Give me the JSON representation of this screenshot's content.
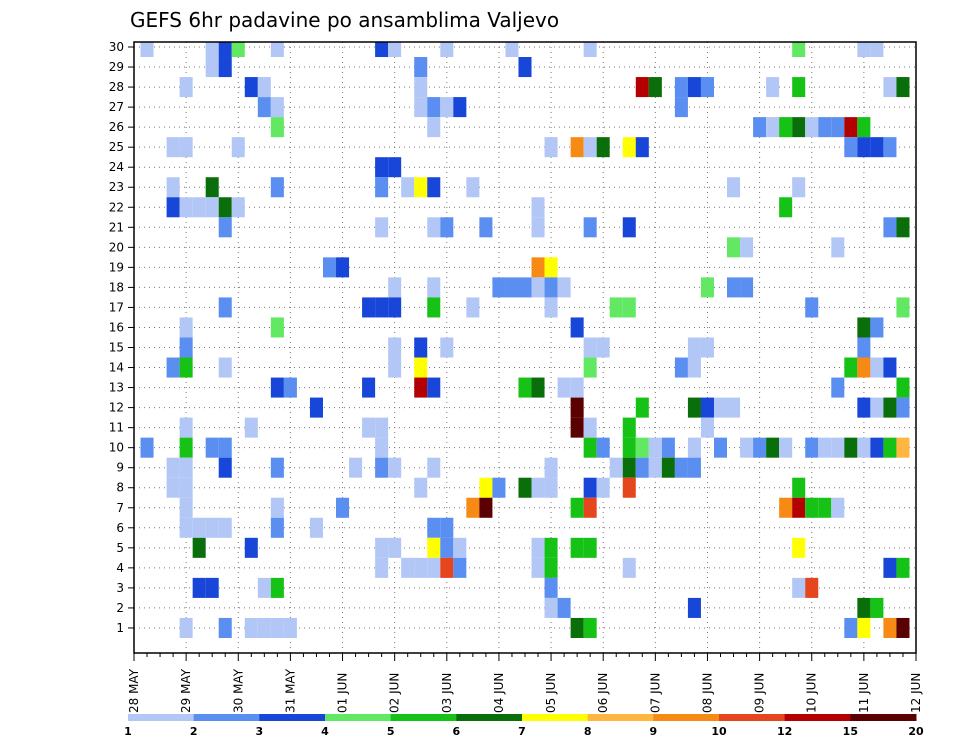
{
  "chart_data": {
    "type": "heatmap",
    "title": "GEFS 6hr padavine po ansamblima Valjevo",
    "y_ticks": [
      1,
      2,
      3,
      4,
      5,
      6,
      7,
      8,
      9,
      10,
      11,
      12,
      13,
      14,
      15,
      16,
      17,
      18,
      19,
      20,
      21,
      22,
      23,
      24,
      25,
      26,
      27,
      28,
      29,
      30
    ],
    "ylim": [
      0,
      30
    ],
    "x_ticks": [
      "28 MAY",
      "29 MAY",
      "30 MAY",
      "31 MAY",
      "01 JUN",
      "02 JUN",
      "03 JUN",
      "04 JUN",
      "05 JUN",
      "06 JUN",
      "07 JUN",
      "08 JUN",
      "09 JUN",
      "10 JUN",
      "11 JUN",
      "12 JUN"
    ],
    "xlim_steps": [
      0,
      60
    ],
    "steps_per_day": 4,
    "grid": true,
    "legend_position": "bottom",
    "legend_levels": [
      "1",
      "2",
      "3",
      "4",
      "5",
      "6",
      "7",
      "8",
      "9",
      "10",
      "12",
      "15",
      "20"
    ],
    "legend_colors": [
      "#b3c7f7",
      "#5a8ef0",
      "#1746d8",
      "#62e862",
      "#17c217",
      "#0a6e0a",
      "#ffff00",
      "#ffb640",
      "#f78a14",
      "#e6461e",
      "#b40000",
      "#5a0000"
    ],
    "cells": [
      [
        1,
        30,
        1
      ],
      [
        6,
        30,
        1
      ],
      [
        7,
        30,
        3
      ],
      [
        8,
        30,
        4
      ],
      [
        11,
        30,
        1
      ],
      [
        19,
        30,
        3
      ],
      [
        20,
        30,
        1
      ],
      [
        24,
        30,
        1
      ],
      [
        29,
        30,
        1
      ],
      [
        35,
        30,
        1
      ],
      [
        51,
        30,
        4
      ],
      [
        56,
        30,
        1
      ],
      [
        57,
        30,
        1
      ],
      [
        6,
        29,
        1
      ],
      [
        7,
        29,
        3
      ],
      [
        22,
        29,
        2
      ],
      [
        30,
        29,
        3
      ],
      [
        4,
        28,
        1
      ],
      [
        9,
        28,
        3
      ],
      [
        10,
        28,
        1
      ],
      [
        22,
        28,
        1
      ],
      [
        39,
        28,
        11
      ],
      [
        40,
        28,
        6
      ],
      [
        42,
        28,
        2
      ],
      [
        43,
        28,
        3
      ],
      [
        44,
        28,
        2
      ],
      [
        49,
        28,
        1
      ],
      [
        51,
        28,
        5
      ],
      [
        58,
        28,
        1
      ],
      [
        59,
        28,
        6
      ],
      [
        10,
        27,
        2
      ],
      [
        11,
        27,
        1
      ],
      [
        22,
        27,
        1
      ],
      [
        23,
        27,
        2
      ],
      [
        24,
        27,
        1
      ],
      [
        25,
        27,
        3
      ],
      [
        42,
        27,
        2
      ],
      [
        11,
        26,
        4
      ],
      [
        23,
        26,
        1
      ],
      [
        48,
        26,
        2
      ],
      [
        49,
        26,
        1
      ],
      [
        50,
        26,
        5
      ],
      [
        51,
        26,
        6
      ],
      [
        52,
        26,
        1
      ],
      [
        53,
        26,
        2
      ],
      [
        54,
        26,
        2
      ],
      [
        55,
        26,
        11
      ],
      [
        56,
        26,
        5
      ],
      [
        3,
        25,
        1
      ],
      [
        4,
        25,
        1
      ],
      [
        8,
        25,
        1
      ],
      [
        32,
        25,
        1
      ],
      [
        34,
        25,
        9
      ],
      [
        35,
        25,
        1
      ],
      [
        36,
        25,
        6
      ],
      [
        38,
        25,
        7
      ],
      [
        39,
        25,
        3
      ],
      [
        55,
        25,
        2
      ],
      [
        56,
        25,
        3
      ],
      [
        57,
        25,
        3
      ],
      [
        58,
        25,
        2
      ],
      [
        19,
        24,
        3
      ],
      [
        20,
        24,
        3
      ],
      [
        3,
        23,
        1
      ],
      [
        6,
        23,
        6
      ],
      [
        11,
        23,
        2
      ],
      [
        19,
        23,
        2
      ],
      [
        21,
        23,
        1
      ],
      [
        22,
        23,
        7
      ],
      [
        23,
        23,
        3
      ],
      [
        26,
        23,
        1
      ],
      [
        46,
        23,
        1
      ],
      [
        51,
        23,
        1
      ],
      [
        3,
        22,
        3
      ],
      [
        4,
        22,
        1
      ],
      [
        5,
        22,
        1
      ],
      [
        6,
        22,
        1
      ],
      [
        7,
        22,
        6
      ],
      [
        8,
        22,
        1
      ],
      [
        31,
        22,
        1
      ],
      [
        50,
        22,
        5
      ],
      [
        7,
        21,
        2
      ],
      [
        19,
        21,
        1
      ],
      [
        23,
        21,
        1
      ],
      [
        24,
        21,
        2
      ],
      [
        27,
        21,
        2
      ],
      [
        31,
        21,
        1
      ],
      [
        35,
        21,
        2
      ],
      [
        38,
        21,
        3
      ],
      [
        58,
        21,
        2
      ],
      [
        59,
        21,
        6
      ],
      [
        46,
        20,
        4
      ],
      [
        47,
        20,
        1
      ],
      [
        54,
        20,
        1
      ],
      [
        15,
        19,
        2
      ],
      [
        16,
        19,
        3
      ],
      [
        31,
        19,
        9
      ],
      [
        32,
        19,
        7
      ],
      [
        20,
        18,
        1
      ],
      [
        23,
        18,
        1
      ],
      [
        28,
        18,
        2
      ],
      [
        29,
        18,
        2
      ],
      [
        30,
        18,
        2
      ],
      [
        31,
        18,
        1
      ],
      [
        32,
        18,
        2
      ],
      [
        33,
        18,
        1
      ],
      [
        44,
        18,
        4
      ],
      [
        46,
        18,
        2
      ],
      [
        47,
        18,
        2
      ],
      [
        7,
        17,
        2
      ],
      [
        18,
        17,
        3
      ],
      [
        19,
        17,
        3
      ],
      [
        20,
        17,
        3
      ],
      [
        23,
        17,
        5
      ],
      [
        26,
        17,
        1
      ],
      [
        32,
        17,
        1
      ],
      [
        37,
        17,
        4
      ],
      [
        38,
        17,
        4
      ],
      [
        52,
        17,
        2
      ],
      [
        59,
        17,
        4
      ],
      [
        4,
        16,
        1
      ],
      [
        11,
        16,
        4
      ],
      [
        34,
        16,
        3
      ],
      [
        56,
        16,
        6
      ],
      [
        57,
        16,
        2
      ],
      [
        4,
        15,
        2
      ],
      [
        20,
        15,
        1
      ],
      [
        22,
        15,
        3
      ],
      [
        24,
        15,
        1
      ],
      [
        35,
        15,
        1
      ],
      [
        36,
        15,
        1
      ],
      [
        43,
        15,
        1
      ],
      [
        44,
        15,
        1
      ],
      [
        56,
        15,
        2
      ],
      [
        3,
        14,
        2
      ],
      [
        4,
        14,
        5
      ],
      [
        7,
        14,
        1
      ],
      [
        20,
        14,
        1
      ],
      [
        22,
        14,
        7
      ],
      [
        35,
        14,
        4
      ],
      [
        42,
        14,
        2
      ],
      [
        43,
        14,
        1
      ],
      [
        55,
        14,
        5
      ],
      [
        56,
        14,
        9
      ],
      [
        57,
        14,
        1
      ],
      [
        58,
        14,
        3
      ],
      [
        11,
        13,
        3
      ],
      [
        12,
        13,
        2
      ],
      [
        18,
        13,
        3
      ],
      [
        22,
        13,
        11
      ],
      [
        23,
        13,
        3
      ],
      [
        30,
        13,
        5
      ],
      [
        31,
        13,
        6
      ],
      [
        33,
        13,
        1
      ],
      [
        34,
        13,
        1
      ],
      [
        54,
        13,
        2
      ],
      [
        59,
        13,
        5
      ],
      [
        14,
        12,
        3
      ],
      [
        34,
        12,
        12
      ],
      [
        39,
        12,
        5
      ],
      [
        43,
        12,
        6
      ],
      [
        44,
        12,
        3
      ],
      [
        45,
        12,
        1
      ],
      [
        46,
        12,
        1
      ],
      [
        56,
        12,
        3
      ],
      [
        57,
        12,
        1
      ],
      [
        58,
        12,
        6
      ],
      [
        59,
        12,
        2
      ],
      [
        4,
        11,
        1
      ],
      [
        9,
        11,
        1
      ],
      [
        18,
        11,
        1
      ],
      [
        19,
        11,
        1
      ],
      [
        34,
        11,
        12
      ],
      [
        35,
        11,
        1
      ],
      [
        38,
        11,
        5
      ],
      [
        44,
        11,
        1
      ],
      [
        1,
        10,
        2
      ],
      [
        4,
        10,
        5
      ],
      [
        6,
        10,
        2
      ],
      [
        7,
        10,
        2
      ],
      [
        19,
        10,
        1
      ],
      [
        35,
        10,
        5
      ],
      [
        36,
        10,
        2
      ],
      [
        38,
        10,
        5
      ],
      [
        39,
        10,
        4
      ],
      [
        40,
        10,
        1
      ],
      [
        41,
        10,
        2
      ],
      [
        43,
        10,
        1
      ],
      [
        45,
        10,
        2
      ],
      [
        47,
        10,
        1
      ],
      [
        48,
        10,
        2
      ],
      [
        49,
        10,
        6
      ],
      [
        50,
        10,
        1
      ],
      [
        52,
        10,
        2
      ],
      [
        53,
        10,
        1
      ],
      [
        54,
        10,
        1
      ],
      [
        55,
        10,
        6
      ],
      [
        56,
        10,
        1
      ],
      [
        57,
        10,
        3
      ],
      [
        58,
        10,
        5
      ],
      [
        59,
        10,
        8
      ],
      [
        3,
        9,
        1
      ],
      [
        4,
        9,
        1
      ],
      [
        7,
        9,
        3
      ],
      [
        11,
        9,
        2
      ],
      [
        17,
        9,
        1
      ],
      [
        19,
        9,
        2
      ],
      [
        20,
        9,
        1
      ],
      [
        23,
        9,
        1
      ],
      [
        32,
        9,
        1
      ],
      [
        37,
        9,
        1
      ],
      [
        38,
        9,
        6
      ],
      [
        39,
        9,
        2
      ],
      [
        40,
        9,
        1
      ],
      [
        41,
        9,
        6
      ],
      [
        42,
        9,
        2
      ],
      [
        43,
        9,
        2
      ],
      [
        3,
        8,
        1
      ],
      [
        4,
        8,
        1
      ],
      [
        22,
        8,
        1
      ],
      [
        27,
        8,
        7
      ],
      [
        28,
        8,
        2
      ],
      [
        30,
        8,
        6
      ],
      [
        31,
        8,
        1
      ],
      [
        32,
        8,
        1
      ],
      [
        35,
        8,
        3
      ],
      [
        36,
        8,
        1
      ],
      [
        38,
        8,
        10
      ],
      [
        51,
        8,
        5
      ],
      [
        4,
        7,
        1
      ],
      [
        11,
        7,
        1
      ],
      [
        16,
        7,
        2
      ],
      [
        26,
        7,
        9
      ],
      [
        27,
        7,
        12
      ],
      [
        34,
        7,
        5
      ],
      [
        35,
        7,
        10
      ],
      [
        50,
        7,
        9
      ],
      [
        51,
        7,
        11
      ],
      [
        52,
        7,
        5
      ],
      [
        53,
        7,
        5
      ],
      [
        54,
        7,
        1
      ],
      [
        4,
        6,
        1
      ],
      [
        5,
        6,
        1
      ],
      [
        6,
        6,
        1
      ],
      [
        7,
        6,
        1
      ],
      [
        11,
        6,
        2
      ],
      [
        14,
        6,
        1
      ],
      [
        23,
        6,
        2
      ],
      [
        24,
        6,
        2
      ],
      [
        5,
        5,
        6
      ],
      [
        9,
        5,
        3
      ],
      [
        19,
        5,
        1
      ],
      [
        20,
        5,
        1
      ],
      [
        23,
        5,
        7
      ],
      [
        24,
        5,
        2
      ],
      [
        25,
        5,
        1
      ],
      [
        31,
        5,
        1
      ],
      [
        32,
        5,
        5
      ],
      [
        34,
        5,
        5
      ],
      [
        35,
        5,
        5
      ],
      [
        51,
        5,
        7
      ],
      [
        19,
        4,
        1
      ],
      [
        21,
        4,
        1
      ],
      [
        22,
        4,
        1
      ],
      [
        23,
        4,
        1
      ],
      [
        24,
        4,
        10
      ],
      [
        25,
        4,
        2
      ],
      [
        31,
        4,
        1
      ],
      [
        32,
        4,
        5
      ],
      [
        38,
        4,
        1
      ],
      [
        58,
        4,
        3
      ],
      [
        59,
        4,
        5
      ],
      [
        5,
        3,
        3
      ],
      [
        6,
        3,
        3
      ],
      [
        10,
        3,
        1
      ],
      [
        11,
        3,
        5
      ],
      [
        32,
        3,
        2
      ],
      [
        51,
        3,
        1
      ],
      [
        52,
        3,
        10
      ],
      [
        32,
        2,
        1
      ],
      [
        33,
        2,
        2
      ],
      [
        43,
        2,
        3
      ],
      [
        56,
        2,
        6
      ],
      [
        57,
        2,
        5
      ],
      [
        4,
        1,
        1
      ],
      [
        7,
        1,
        2
      ],
      [
        9,
        1,
        1
      ],
      [
        10,
        1,
        1
      ],
      [
        11,
        1,
        1
      ],
      [
        12,
        1,
        1
      ],
      [
        34,
        1,
        6
      ],
      [
        35,
        1,
        5
      ],
      [
        55,
        1,
        2
      ],
      [
        56,
        1,
        7
      ],
      [
        58,
        1,
        9
      ],
      [
        59,
        1,
        12
      ]
    ]
  }
}
